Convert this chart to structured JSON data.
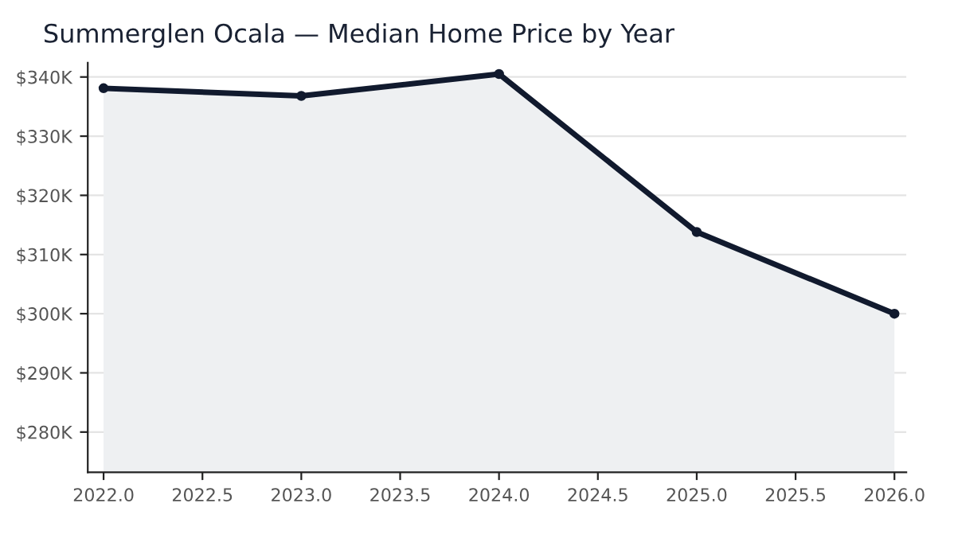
{
  "chart_data": {
    "type": "area",
    "title": "Summerglen Ocala — Median Home Price by Year",
    "x": [
      2022,
      2023,
      2024,
      2025,
      2026
    ],
    "series": [
      {
        "color": "#111a2e",
        "values": [
          338.1,
          336.8,
          340.5,
          313.8,
          300.0
        ]
      }
    ],
    "xlim": [
      2021.92,
      2026.06
    ],
    "xticks": [
      {
        "value": 2022,
        "label": "2022.0"
      },
      2022.5,
      {
        "value": 2023,
        "label": "2023.0"
      },
      2023.5,
      {
        "value": 2024,
        "label": "2024.0"
      },
      2024.5,
      {
        "value": 2025,
        "label": "2025.0"
      },
      2025.5,
      {
        "value": 2026,
        "label": "2026.0"
      }
    ],
    "ylim": [
      273.2,
      342.4
    ],
    "yticks": [
      {
        "value": 280,
        "label": "$280K"
      },
      {
        "value": 290,
        "label": "$290K"
      },
      {
        "value": 300,
        "label": "$300K"
      },
      {
        "value": 310,
        "label": "$310K"
      },
      {
        "value": 320,
        "label": "$320K"
      },
      {
        "value": 330,
        "label": "$330K"
      },
      {
        "value": 340,
        "label": "$340K"
      }
    ],
    "grid": "y",
    "marker": "circle",
    "line_style": "solid"
  }
}
